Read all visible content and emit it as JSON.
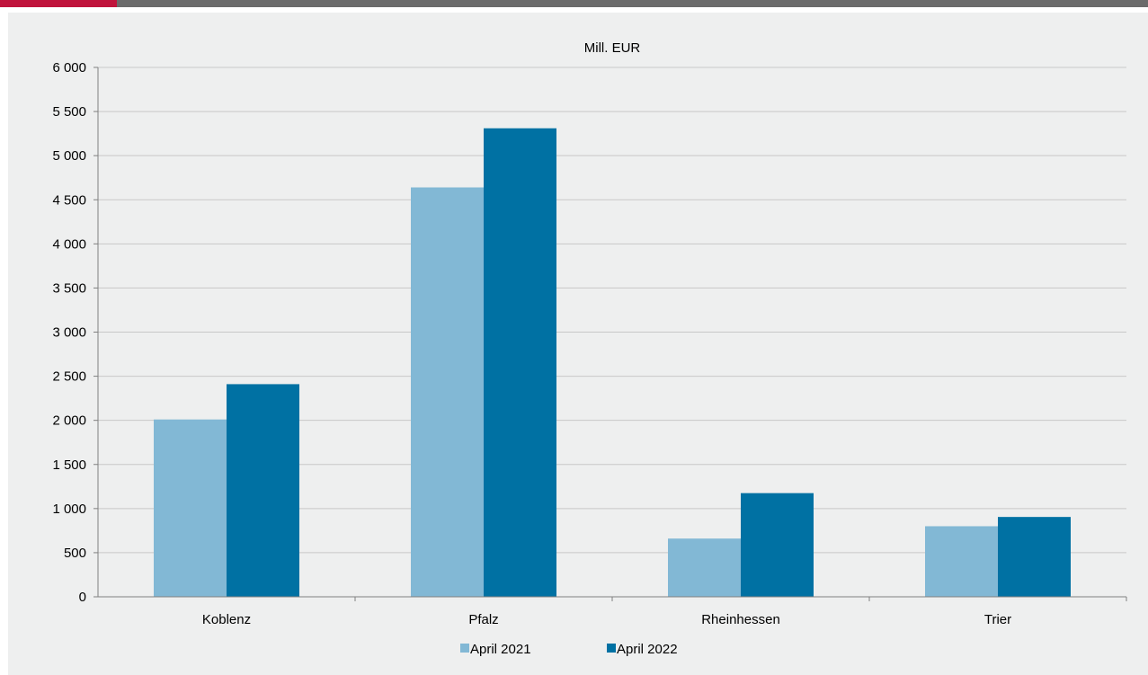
{
  "colors": {
    "top_bar": "#6b6b6b",
    "top_bar_accent": "#c0143c",
    "panel_background": "#eeefef",
    "gridline": "#c8c8c8",
    "series_2021": "#82b8d5",
    "series_2022": "#0071a3"
  },
  "chart_data": {
    "type": "bar",
    "title": "",
    "ylabel": "Mill. EUR",
    "xlabel": "",
    "categories": [
      "Koblenz",
      "Pfalz",
      "Rheinhessen",
      "Trier"
    ],
    "series": [
      {
        "name": "April 2021",
        "color": "#82b8d5",
        "values": [
          2010,
          4640,
          660,
          800
        ]
      },
      {
        "name": "April 2022",
        "color": "#0071a3",
        "values": [
          2410,
          5310,
          1175,
          905
        ]
      }
    ],
    "ylim": [
      0,
      6000
    ],
    "yticks": [
      0,
      500,
      1000,
      1500,
      2000,
      2500,
      3000,
      3500,
      4000,
      4500,
      5000,
      5500,
      6000
    ],
    "ytick_labels": [
      "0",
      "500",
      "1 000",
      "1 500",
      "2 000",
      "2 500",
      "3 000",
      "3 500",
      "4 000",
      "4 500",
      "5 000",
      "5 500",
      "6 000"
    ],
    "grid": true,
    "legend_position": "bottom-center"
  }
}
